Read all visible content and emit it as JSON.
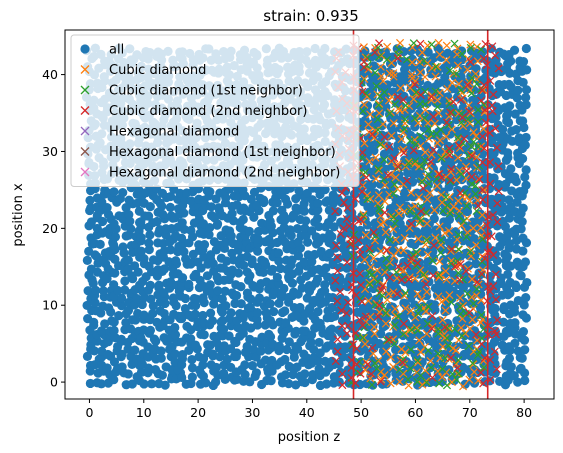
{
  "chart_data": {
    "type": "scatter",
    "title": "strain: 0.935",
    "xlabel": "position z",
    "ylabel": "position x",
    "xlim": [
      -4.5,
      85.5
    ],
    "ylim": [
      -2.2,
      45.8
    ],
    "xticks": [
      0,
      10,
      20,
      30,
      40,
      50,
      60,
      70,
      80
    ],
    "yticks": [
      0,
      10,
      20,
      30,
      40
    ],
    "grid": false,
    "legend_position": "top-left",
    "vlines": [
      {
        "x": 48.6,
        "color": "#d62728"
      },
      {
        "x": 73.3,
        "color": "#d62728"
      }
    ],
    "series": [
      {
        "name": "all",
        "marker": "circle",
        "color": "#1f77b4",
        "x_range": [
          0,
          81
        ],
        "y_range": [
          0,
          43.5
        ]
      },
      {
        "name": "Cubic diamond",
        "marker": "x",
        "color": "#ff7f0e",
        "x_range": [
          51,
          72
        ],
        "y_range": [
          0,
          43.5
        ]
      },
      {
        "name": "Cubic diamond (1st neighbor)",
        "marker": "x",
        "color": "#2ca02c",
        "x_range": [
          49,
          73
        ],
        "y_range": [
          0,
          43.5
        ]
      },
      {
        "name": "Cubic diamond (2nd neighbor)",
        "marker": "x",
        "color": "#d62728",
        "x_range": [
          46,
          76
        ],
        "y_range": [
          0,
          43.5
        ]
      },
      {
        "name": "Hexagonal diamond",
        "marker": "x",
        "color": "#9467bd",
        "x_range": null,
        "y_range": null
      },
      {
        "name": "Hexagonal diamond (1st neighbor)",
        "marker": "x",
        "color": "#8c564b",
        "x_range": null,
        "y_range": null
      },
      {
        "name": "Hexagonal diamond (2nd neighbor)",
        "marker": "x",
        "color": "#e377c2",
        "x_range": null,
        "y_range": null
      }
    ]
  }
}
